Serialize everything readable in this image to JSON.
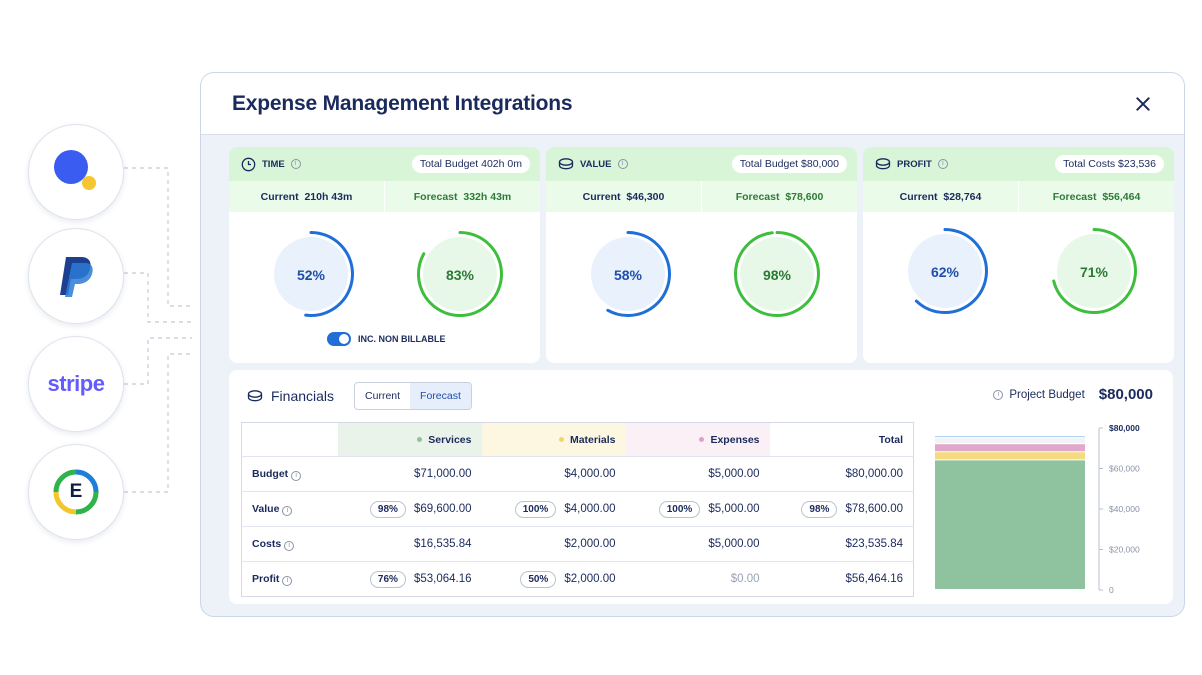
{
  "integrations": [
    {
      "name": "Harvest"
    },
    {
      "name": "PayPal"
    },
    {
      "name": "stripe",
      "wordmark": "stripe",
      "color": "#635bff"
    },
    {
      "name": "Expensify",
      "letter": "E"
    }
  ],
  "modal": {
    "title": "Expense Management Integrations"
  },
  "cards": [
    {
      "label": "TIME",
      "budget_label": "Total Budget",
      "budget_value": "402h 0m",
      "current_label": "Current",
      "current_value": "210h 43m",
      "forecast_label": "Forecast",
      "forecast_value": "332h 43m",
      "current_pct": "52%",
      "current_fraction": 0.52,
      "forecast_pct": "83%",
      "forecast_fraction": 0.83
    },
    {
      "label": "VALUE",
      "budget_label": "Total Budget",
      "budget_value": "$80,000",
      "current_label": "Current",
      "current_value": "$46,300",
      "forecast_label": "Forecast",
      "forecast_value": "$78,600",
      "current_pct": "58%",
      "current_fraction": 0.58,
      "forecast_pct": "98%",
      "forecast_fraction": 0.98
    },
    {
      "label": "PROFIT",
      "budget_label": "Total Costs",
      "budget_value": "$23,536",
      "current_label": "Current",
      "current_value": "$28,764",
      "forecast_label": "Forecast",
      "forecast_value": "$56,464",
      "current_pct": "62%",
      "current_fraction": 0.62,
      "forecast_pct": "71%",
      "forecast_fraction": 0.71
    }
  ],
  "toggle": {
    "label": "INC. NON BILLABLE",
    "on": true
  },
  "financials": {
    "title": "Financials",
    "tabs": [
      "Current",
      "Forecast"
    ],
    "active_tab": "Forecast",
    "project_budget_label": "Project Budget",
    "project_budget_value": "$80,000",
    "columns": [
      {
        "label": "Services",
        "color": "#8bc49a",
        "bg": "#e9f3ea"
      },
      {
        "label": "Materials",
        "color": "#f3d370",
        "bg": "#fdf7e2"
      },
      {
        "label": "Expenses",
        "color": "#dba3c6",
        "bg": "#fbf0f6"
      },
      {
        "label": "Total"
      }
    ],
    "rows": [
      {
        "label": "Budget",
        "cells": [
          {
            "value": "$71,000.00"
          },
          {
            "value": "$4,000.00"
          },
          {
            "value": "$5,000.00"
          },
          {
            "value": "$80,000.00"
          }
        ]
      },
      {
        "label": "Value",
        "cells": [
          {
            "pct": "98%",
            "value": "$69,600.00"
          },
          {
            "pct": "100%",
            "value": "$4,000.00"
          },
          {
            "pct": "100%",
            "value": "$5,000.00"
          },
          {
            "pct": "98%",
            "value": "$78,600.00"
          }
        ]
      },
      {
        "label": "Costs",
        "cells": [
          {
            "value": "$16,535.84"
          },
          {
            "value": "$2,000.00"
          },
          {
            "value": "$5,000.00"
          },
          {
            "value": "$23,535.84"
          }
        ]
      },
      {
        "label": "Profit",
        "cells": [
          {
            "pct": "76%",
            "value": "$53,064.16"
          },
          {
            "pct": "50%",
            "value": "$2,000.00"
          },
          {
            "value": "$0.00",
            "muted": true
          },
          {
            "value": "$56,464.16"
          }
        ]
      }
    ]
  },
  "chart_data": {
    "type": "bar",
    "stacked": true,
    "categories": [
      ""
    ],
    "series": [
      {
        "values": [
          64000
        ],
        "color": "#8fc3a0"
      },
      {
        "values": [
          4000
        ],
        "color": "#f6da7e"
      },
      {
        "values": [
          4000
        ],
        "color": "#e0a9cb"
      },
      {
        "values": [
          3000
        ],
        "color": "#f1f3f6"
      },
      {
        "values": [
          1000
        ],
        "color": "#a9cff3"
      }
    ],
    "budget_marker": 80000,
    "ytick_labels": [
      "$80,000",
      "$60,000",
      "$40,000",
      "$20,000",
      "0"
    ],
    "yticks": [
      80000,
      60000,
      40000,
      20000,
      0
    ],
    "ylim": [
      0,
      80000
    ],
    "axis_position": "right"
  }
}
